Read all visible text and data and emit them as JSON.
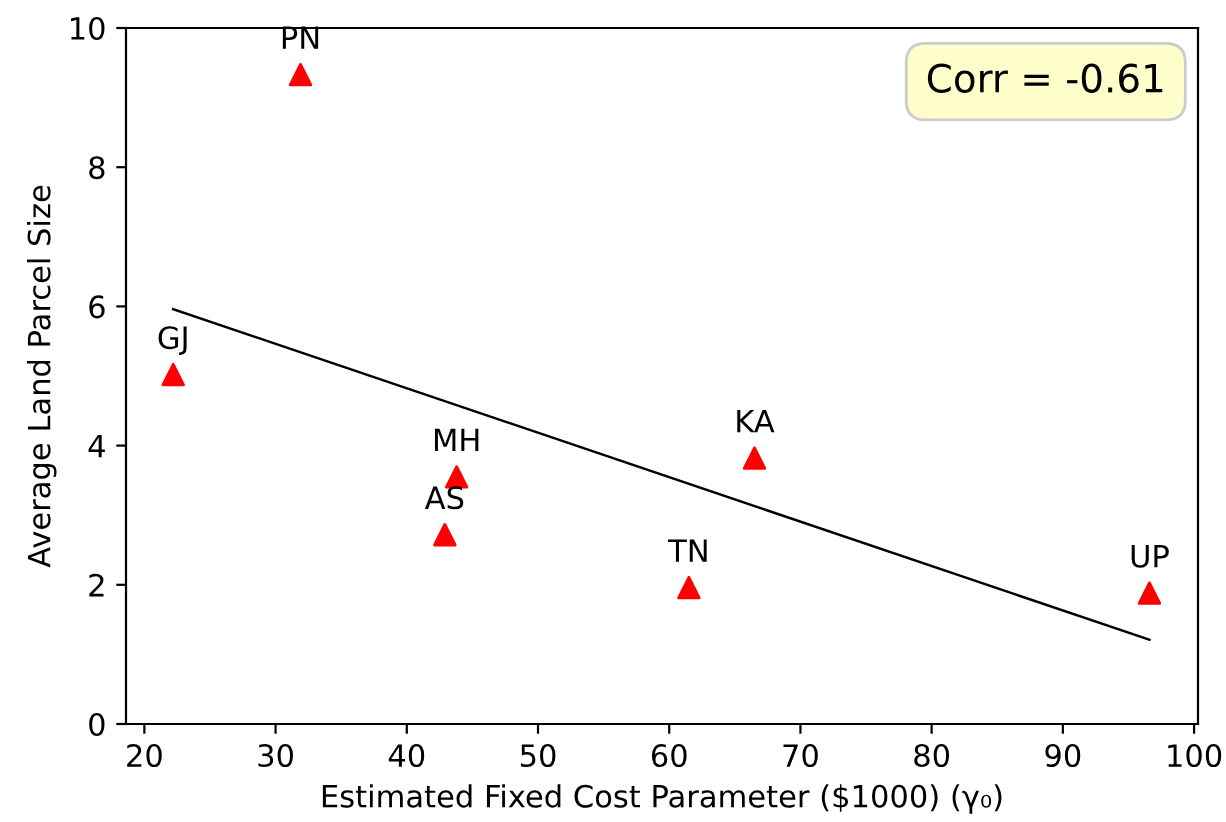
{
  "chart_data": {
    "type": "scatter",
    "xlabel": "Estimated Fixed Cost Parameter ($1000) (γ₀)",
    "ylabel": "Average Land Parcel Size",
    "series": [
      {
        "color": "#ff0000",
        "marker": "triangle",
        "x": [
          31.9,
          22.2,
          43.8,
          42.9,
          61.5,
          66.5,
          96.6
        ],
        "values": [
          9.33,
          5.02,
          3.55,
          2.72,
          1.96,
          3.82,
          1.88
        ]
      },
      {
        "type": "line",
        "color": "#000000",
        "marker": "none",
        "x": [
          22.2,
          96.6
        ],
        "values": [
          5.96,
          1.21
        ]
      }
    ],
    "annotations": [
      {
        "text": "PN",
        "x": 31.9,
        "y": 9.33
      },
      {
        "text": "GJ",
        "x": 22.2,
        "y": 5.02
      },
      {
        "text": "MH",
        "x": 43.8,
        "y": 3.55
      },
      {
        "text": "AS",
        "x": 42.9,
        "y": 2.72
      },
      {
        "text": "TN",
        "x": 61.5,
        "y": 1.96
      },
      {
        "text": "KA",
        "x": 66.5,
        "y": 3.82
      },
      {
        "text": "UP",
        "x": 96.6,
        "y": 1.88
      },
      "Corr = -0.61"
    ],
    "xlim": [
      18.6,
      100.3
    ],
    "ylim": [
      0,
      10
    ],
    "xticks": [
      20,
      30,
      40,
      50,
      60,
      70,
      80,
      90,
      100
    ],
    "yticks": [
      0,
      2,
      4,
      6,
      8,
      10
    ],
    "grid": false
  }
}
